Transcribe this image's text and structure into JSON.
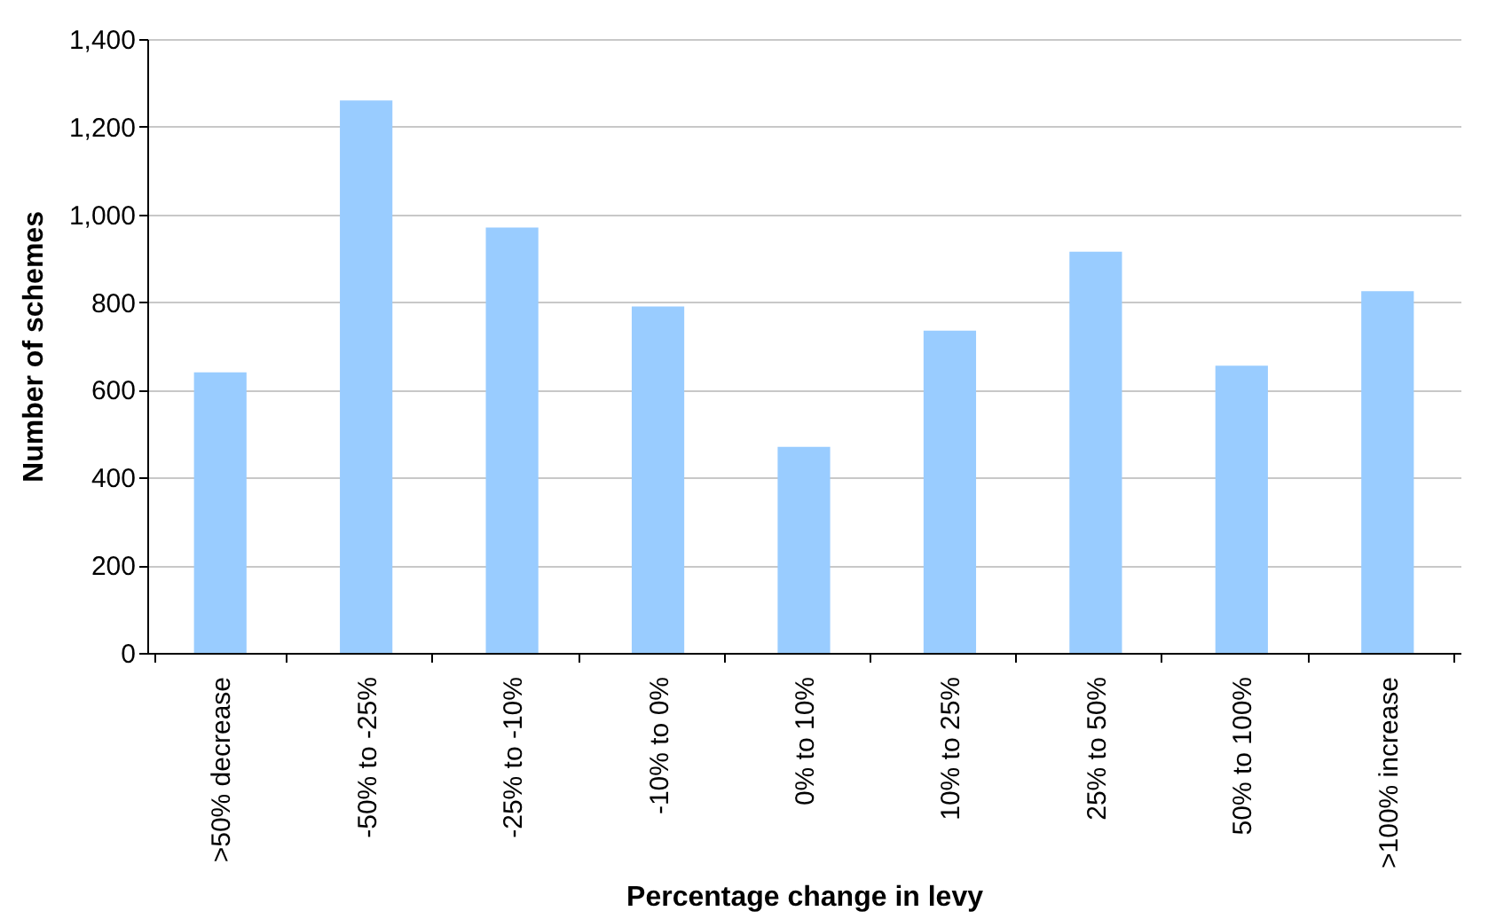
{
  "chart_data": {
    "type": "bar",
    "xlabel": "Percentage change in levy",
    "ylabel": "Number of schemes",
    "categories": [
      ">50% decrease",
      "-50% to -25%",
      "-25% to -10%",
      "-10% to 0%",
      "0% to 10%",
      "10% to 25%",
      "25% to 50%",
      "50% to 100%",
      ">100% increase"
    ],
    "values": [
      640,
      1260,
      970,
      790,
      470,
      735,
      915,
      655,
      825
    ],
    "color": "#99ccff",
    "ylim": [
      0,
      1400
    ],
    "yticks": [
      0,
      {
        "value": 200,
        "label": "200"
      },
      {
        "value": 400,
        "label": "400"
      },
      {
        "value": 600,
        "label": "600"
      },
      {
        "value": 800,
        "label": "800"
      },
      {
        "value": 1000,
        "label": "1,000"
      },
      {
        "value": 1200,
        "label": "1,200"
      },
      {
        "value": 1400,
        "label": "1,400"
      }
    ],
    "grid": "y"
  }
}
